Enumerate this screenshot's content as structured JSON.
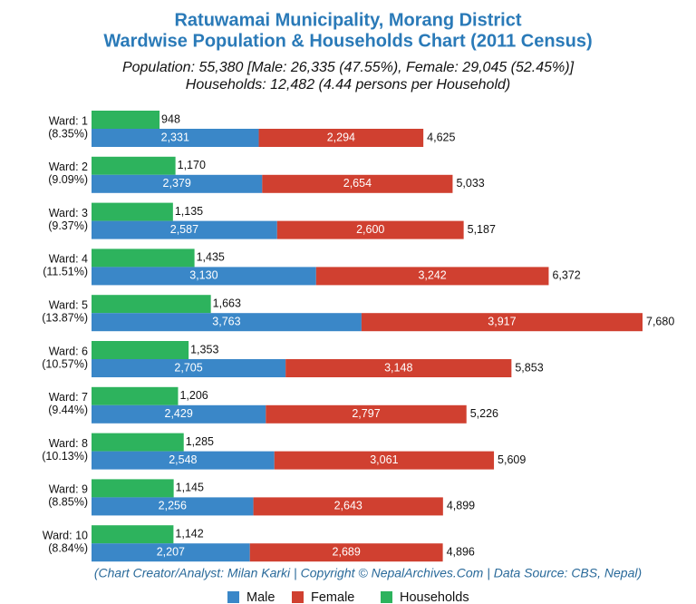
{
  "chart_data": {
    "type": "bar",
    "orientation": "horizontal",
    "title": "Ratuwamai Municipality, Morang District",
    "title2": "Wardwise Population & Households Chart (2011 Census)",
    "subtitle": "Population: 55,380 [Male: 26,335 (47.55%), Female: 29,045 (52.45%)]",
    "subtitle2": "Households: 12,482 (4.44 persons per Household)",
    "footer": "(Chart Creator/Analyst: Milan Karki | Copyright © NepalArchives.Com | Data Source: CBS, Nepal)",
    "categories": [
      "Ward: 1",
      "Ward: 2",
      "Ward: 3",
      "Ward: 4",
      "Ward: 5",
      "Ward: 6",
      "Ward: 7",
      "Ward: 8",
      "Ward: 9",
      "Ward: 10"
    ],
    "category_notes": [
      "(8.35%)",
      "(9.09%)",
      "(9.37%)",
      "(11.51%)",
      "(13.87%)",
      "(10.57%)",
      "(9.44%)",
      "(10.13%)",
      "(8.85%)",
      "(8.84%)"
    ],
    "series": [
      {
        "name": "Male",
        "color": "#3a87c8",
        "values": [
          2331,
          2379,
          2587,
          3130,
          3763,
          2705,
          2429,
          2548,
          2256,
          2207
        ],
        "value_labels": [
          "2,331",
          "2,379",
          "2,587",
          "3,130",
          "3,763",
          "2,705",
          "2,429",
          "2,548",
          "2,256",
          "2,207"
        ]
      },
      {
        "name": "Female",
        "color": "#d04030",
        "values": [
          2294,
          2654,
          2600,
          3242,
          3917,
          3148,
          2797,
          3061,
          2643,
          2689
        ],
        "value_labels": [
          "2,294",
          "2,654",
          "2,600",
          "3,242",
          "3,917",
          "3,148",
          "2,797",
          "3,061",
          "2,643",
          "2,689"
        ]
      },
      {
        "name": "Households",
        "color": "#2db35d",
        "values": [
          948,
          1170,
          1135,
          1435,
          1663,
          1353,
          1206,
          1285,
          1145,
          1142
        ],
        "value_labels": [
          "948",
          "1,170",
          "1,135",
          "1,435",
          "1,663",
          "1,353",
          "1,206",
          "1,285",
          "1,145",
          "1,142"
        ]
      }
    ],
    "totals": [
      4625,
      5033,
      5187,
      6372,
      7680,
      5853,
      5226,
      5609,
      4899,
      4896
    ],
    "total_labels": [
      "4,625",
      "5,033",
      "5,187",
      "6,372",
      "7,680",
      "5,853",
      "5,226",
      "5,609",
      "4,899",
      "4,896"
    ]
  }
}
